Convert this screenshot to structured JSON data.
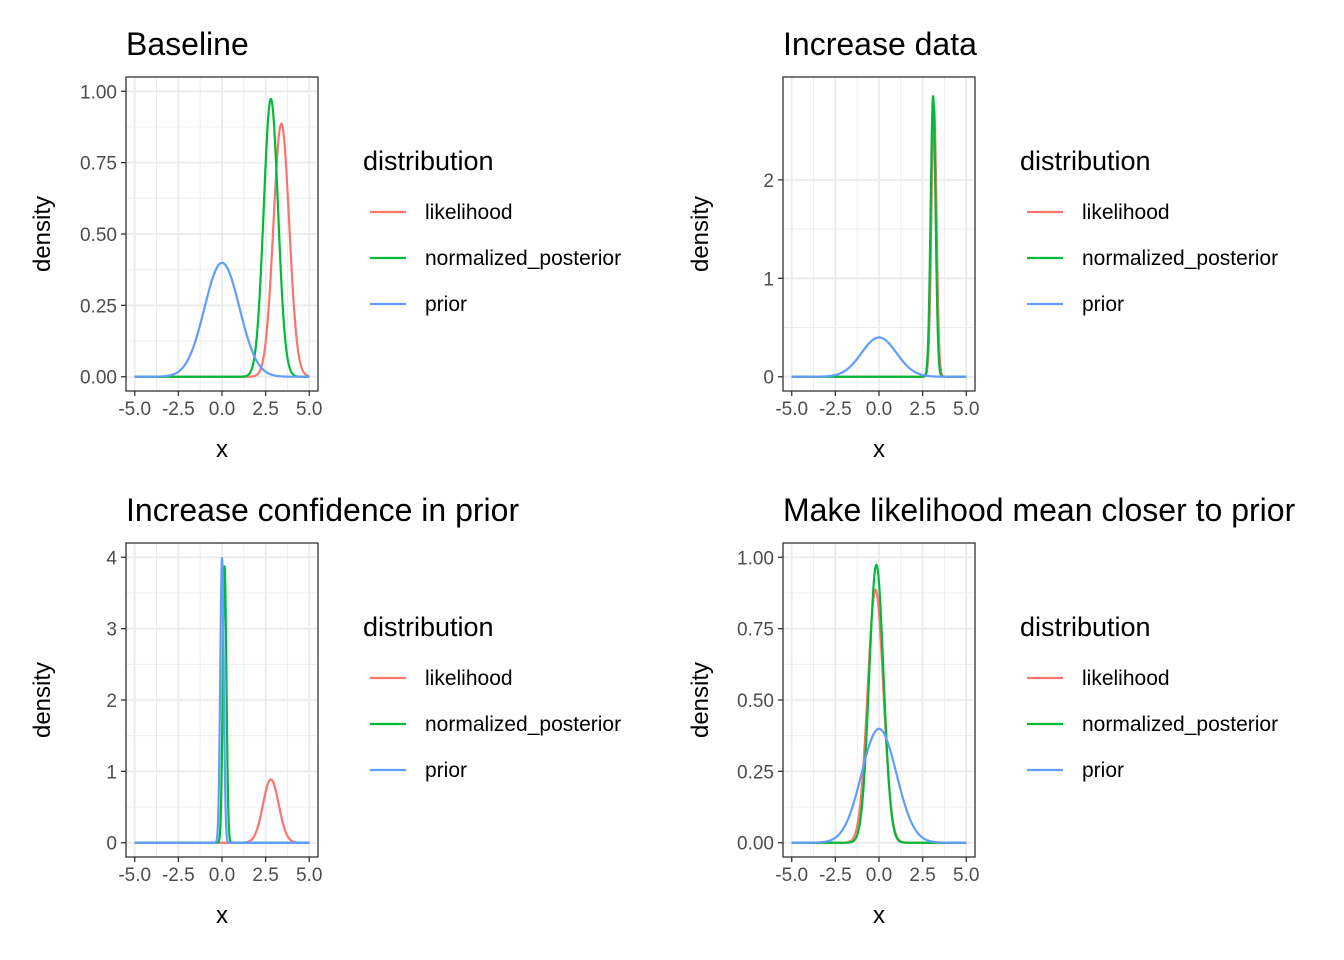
{
  "chart_data": [
    {
      "type": "line",
      "title": "Baseline",
      "xlabel": "x",
      "ylabel": "density",
      "xlim": [
        -5,
        5
      ],
      "ylim": [
        0,
        1.0
      ],
      "xticks": [
        -5.0,
        -2.5,
        0.0,
        2.5,
        5.0
      ],
      "xtick_labels": [
        "-5.0",
        "-2.5",
        "0.0",
        "2.5",
        "5.0"
      ],
      "yticks": [
        0,
        0.25,
        0.5,
        0.75,
        1.0
      ],
      "ytick_labels": [
        "0.00",
        "0.25",
        "0.50",
        "0.75",
        "1.00"
      ],
      "grid": true,
      "legend_title": "distribution",
      "legend_position": "right",
      "series": [
        {
          "name": "likelihood",
          "color": "#F8766D",
          "mean": 3.4,
          "sd": 0.45
        },
        {
          "name": "normalized_posterior",
          "color": "#00BA38",
          "mean": 2.8,
          "sd": 0.41
        },
        {
          "name": "prior",
          "color": "#619CFF",
          "mean": 0.0,
          "sd": 1.0
        }
      ]
    },
    {
      "type": "line",
      "title": "Increase data",
      "xlabel": "x",
      "ylabel": "density",
      "xlim": [
        -5,
        5
      ],
      "ylim": [
        0,
        2.9
      ],
      "xticks": [
        -5.0,
        -2.5,
        0.0,
        2.5,
        5.0
      ],
      "xtick_labels": [
        "-5.0",
        "-2.5",
        "0.0",
        "2.5",
        "5.0"
      ],
      "yticks": [
        0,
        1,
        2
      ],
      "ytick_labels": [
        "0",
        "1",
        "2"
      ],
      "grid": true,
      "legend_title": "distribution",
      "legend_position": "right",
      "series": [
        {
          "name": "likelihood",
          "color": "#F8766D",
          "mean": 3.15,
          "sd": 0.145
        },
        {
          "name": "normalized_posterior",
          "color": "#00BA38",
          "mean": 3.1,
          "sd": 0.14
        },
        {
          "name": "prior",
          "color": "#619CFF",
          "mean": 0.0,
          "sd": 1.0
        }
      ]
    },
    {
      "type": "line",
      "title": "Increase confidence in prior",
      "xlabel": "x",
      "ylabel": "density",
      "xlim": [
        -5,
        5
      ],
      "ylim": [
        0,
        4.0
      ],
      "xticks": [
        -5.0,
        -2.5,
        0.0,
        2.5,
        5.0
      ],
      "xtick_labels": [
        "-5.0",
        "-2.5",
        "0.0",
        "2.5",
        "5.0"
      ],
      "yticks": [
        0,
        1,
        2,
        3,
        4
      ],
      "ytick_labels": [
        "0",
        "1",
        "2",
        "3",
        "4"
      ],
      "grid": true,
      "legend_title": "distribution",
      "legend_position": "right",
      "series": [
        {
          "name": "likelihood",
          "color": "#F8766D",
          "mean": 2.8,
          "sd": 0.45
        },
        {
          "name": "normalized_posterior",
          "color": "#00BA38",
          "mean": 0.15,
          "sd": 0.103
        },
        {
          "name": "prior",
          "color": "#619CFF",
          "mean": 0.0,
          "sd": 0.1
        }
      ]
    },
    {
      "type": "line",
      "title": "Make likelihood mean closer to prior",
      "xlabel": "x",
      "ylabel": "density",
      "xlim": [
        -5,
        5
      ],
      "ylim": [
        0,
        1.0
      ],
      "xticks": [
        -5.0,
        -2.5,
        0.0,
        2.5,
        5.0
      ],
      "xtick_labels": [
        "-5.0",
        "-2.5",
        "0.0",
        "2.5",
        "5.0"
      ],
      "yticks": [
        0,
        0.25,
        0.5,
        0.75,
        1.0
      ],
      "ytick_labels": [
        "0.00",
        "0.25",
        "0.50",
        "0.75",
        "1.00"
      ],
      "grid": true,
      "legend_title": "distribution",
      "legend_position": "right",
      "series": [
        {
          "name": "likelihood",
          "color": "#F8766D",
          "mean": -0.2,
          "sd": 0.45
        },
        {
          "name": "normalized_posterior",
          "color": "#00BA38",
          "mean": -0.15,
          "sd": 0.41
        },
        {
          "name": "prior",
          "color": "#619CFF",
          "mean": 0.0,
          "sd": 1.0
        }
      ]
    }
  ]
}
